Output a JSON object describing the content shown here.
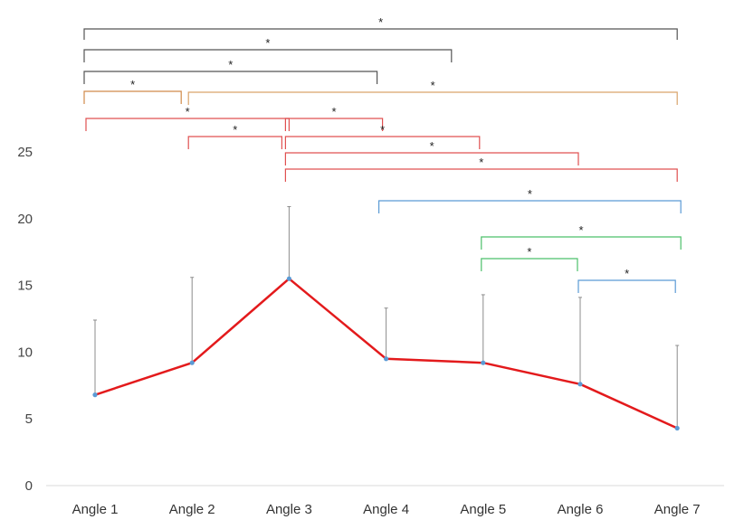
{
  "chart_data": {
    "type": "line",
    "title": "",
    "xlabel": "",
    "ylabel": "",
    "categories": [
      "Angle 1",
      "Angle 2",
      "Angle 3",
      "Angle 4",
      "Angle 5",
      "Angle 6",
      "Angle 7"
    ],
    "values": [
      6.8,
      9.2,
      15.5,
      9.5,
      9.2,
      7.6,
      4.3
    ],
    "error_upper": [
      12.4,
      15.6,
      20.9,
      13.3,
      14.3,
      14.1,
      10.5
    ],
    "ylim": [
      0,
      25
    ],
    "yticks": [
      0,
      5,
      10,
      15,
      20,
      25
    ],
    "grid": false,
    "line_color": "#e31a1c",
    "marker_color": "#5b9bd5",
    "error_bar_color": "#8c8c8c",
    "significance_label": "*",
    "significance_brackets": [
      {
        "from": "Angle 1",
        "to": "Angle 7",
        "color": "#555555"
      },
      {
        "from": "Angle 1",
        "to": "Angle 5",
        "color": "#555555"
      },
      {
        "from": "Angle 1",
        "to": "Angle 4",
        "color": "#555555"
      },
      {
        "from": "Angle 1",
        "to": "Angle 2",
        "color": "#d08a4a"
      },
      {
        "from": "Angle 2",
        "to": "Angle 7",
        "color": "#d9a36b"
      },
      {
        "from": "Angle 1",
        "to": "Angle 3",
        "color": "#e05050"
      },
      {
        "from": "Angle 2",
        "to": "Angle 3",
        "color": "#e05050"
      },
      {
        "from": "Angle 3",
        "to": "Angle 4",
        "color": "#e05050"
      },
      {
        "from": "Angle 3",
        "to": "Angle 5",
        "color": "#e05050"
      },
      {
        "from": "Angle 3",
        "to": "Angle 6",
        "color": "#e05050"
      },
      {
        "from": "Angle 3",
        "to": "Angle 7",
        "color": "#e05050"
      },
      {
        "from": "Angle 4",
        "to": "Angle 7",
        "color": "#5b9bd5"
      },
      {
        "from": "Angle 5",
        "to": "Angle 7",
        "color": "#4cc06a"
      },
      {
        "from": "Angle 5",
        "to": "Angle 6",
        "color": "#4cc06a"
      },
      {
        "from": "Angle 6",
        "to": "Angle 7",
        "color": "#5b9bd5"
      }
    ]
  }
}
